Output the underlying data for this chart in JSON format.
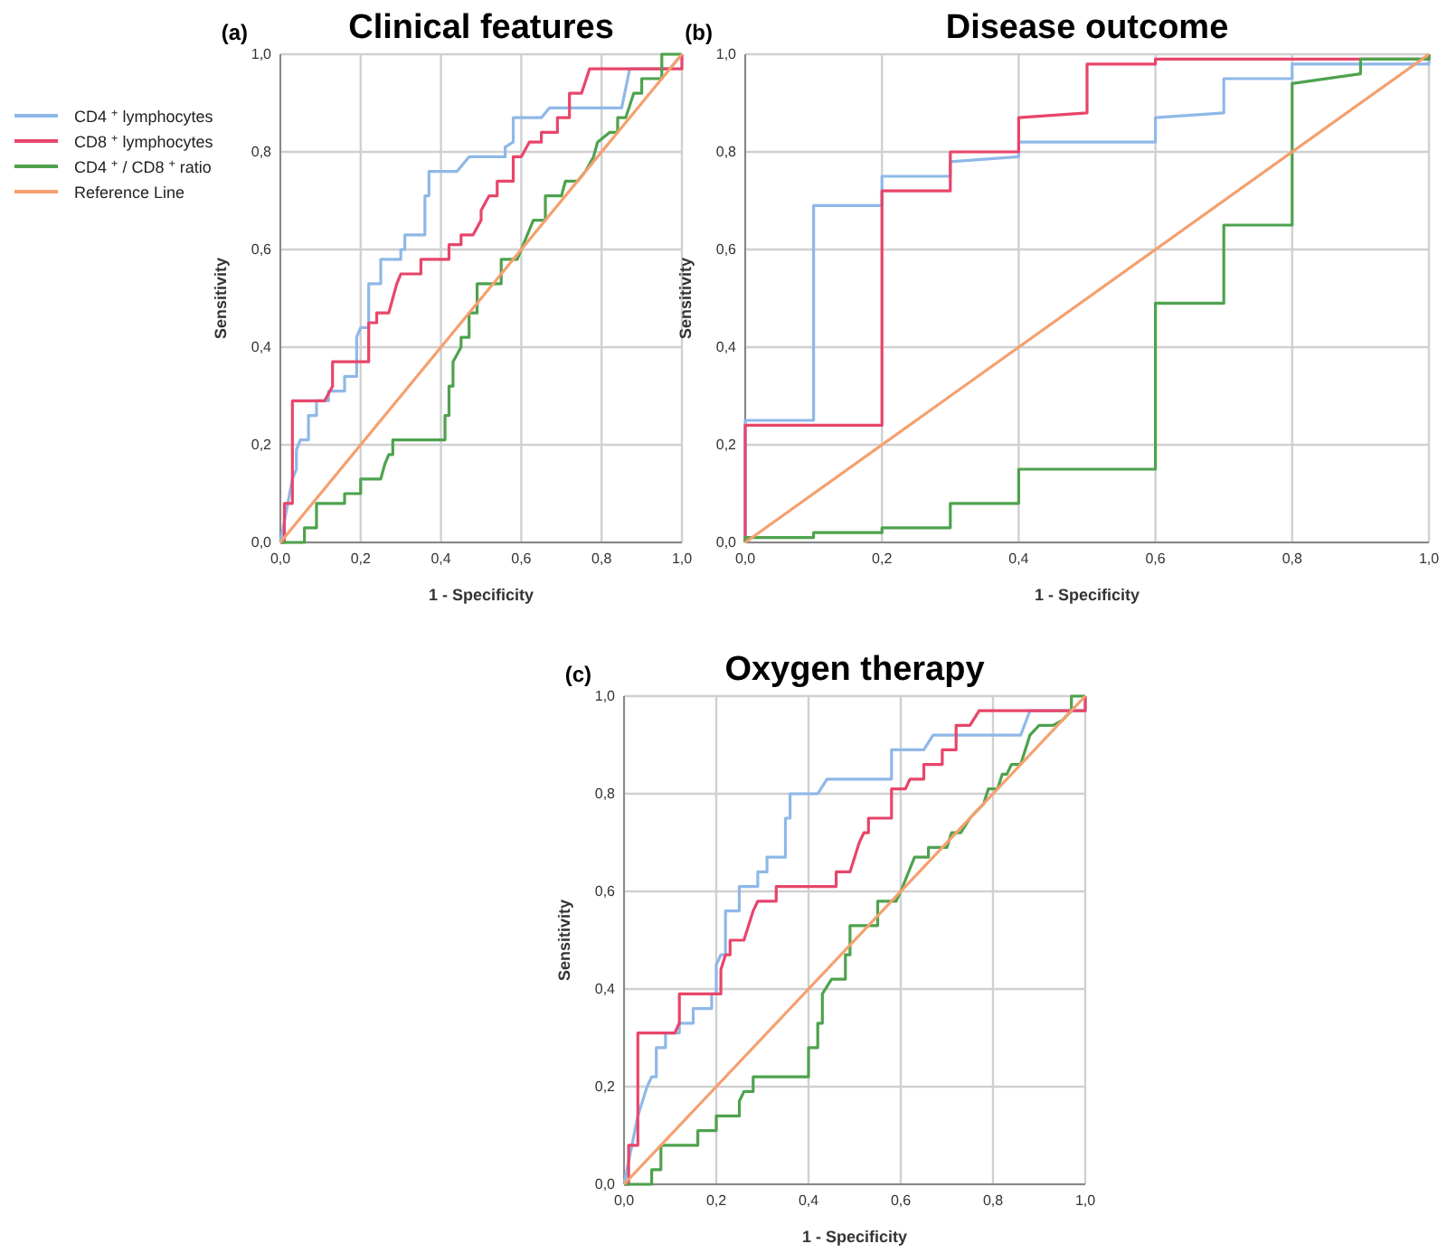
{
  "chart_data": [
    {
      "type": "line",
      "title": "Clinical features",
      "annotations": [
        "(a)"
      ],
      "xlabel": "1 - Specificity",
      "ylabel": "Sensitivity",
      "xlim": [
        0,
        1
      ],
      "ylim": [
        0,
        1
      ],
      "xticks": [
        {
          "value": 0,
          "label": "0,0"
        },
        {
          "value": 0.2,
          "label": "0,2"
        },
        {
          "value": 0.4,
          "label": "0,4"
        },
        {
          "value": 0.6,
          "label": "0,6"
        },
        {
          "value": 0.8,
          "label": "0,8"
        },
        {
          "value": 1,
          "label": "1,0"
        }
      ],
      "yticks": [
        {
          "value": 0,
          "label": "0,0"
        },
        {
          "value": 0.2,
          "label": "0,2"
        },
        {
          "value": 0.4,
          "label": "0,4"
        },
        {
          "value": 0.6,
          "label": "0,6"
        },
        {
          "value": 0.8,
          "label": "0,8"
        },
        {
          "value": 1,
          "label": "1,0"
        }
      ],
      "grid": true,
      "legend": "left",
      "line_style": "solid",
      "series": [
        {
          "name": "CD4 $^{+}$ lymphocytes",
          "color": "#8fb8e8",
          "x": [
            0,
            0.03,
            0.04,
            0.04,
            0.05,
            0.07,
            0.07,
            0.09,
            0.09,
            0.12,
            0.12,
            0.16,
            0.16,
            0.19,
            0.19,
            0.2,
            0.22,
            0.22,
            0.25,
            0.25,
            0.3,
            0.3,
            0.31,
            0.31,
            0.36,
            0.36,
            0.37,
            0.37,
            0.44,
            0.47,
            0.56,
            0.56,
            0.58,
            0.58,
            0.65,
            0.67,
            0.85,
            0.87,
            0.97,
            1
          ],
          "values": [
            0,
            0.13,
            0.15,
            0.19,
            0.21,
            0.21,
            0.26,
            0.26,
            0.29,
            0.29,
            0.31,
            0.31,
            0.34,
            0.34,
            0.42,
            0.44,
            0.44,
            0.53,
            0.53,
            0.58,
            0.58,
            0.6,
            0.6,
            0.63,
            0.63,
            0.71,
            0.71,
            0.76,
            0.76,
            0.79,
            0.79,
            0.81,
            0.82,
            0.87,
            0.87,
            0.89,
            0.89,
            0.97,
            0.97,
            1
          ]
        },
        {
          "name": "CD8 $^{+}$ lymphocytes",
          "color": "#e8456a",
          "x": [
            0,
            0.01,
            0.01,
            0.03,
            0.03,
            0.11,
            0.13,
            0.13,
            0.22,
            0.22,
            0.24,
            0.24,
            0.27,
            0.28,
            0.29,
            0.3,
            0.35,
            0.35,
            0.42,
            0.42,
            0.45,
            0.45,
            0.48,
            0.5,
            0.5,
            0.52,
            0.54,
            0.54,
            0.58,
            0.58,
            0.6,
            0.62,
            0.65,
            0.65,
            0.69,
            0.69,
            0.72,
            0.72,
            0.75,
            0.77,
            1,
            1
          ],
          "values": [
            0,
            0,
            0.08,
            0.08,
            0.29,
            0.29,
            0.32,
            0.37,
            0.37,
            0.45,
            0.45,
            0.47,
            0.47,
            0.5,
            0.53,
            0.55,
            0.55,
            0.58,
            0.58,
            0.61,
            0.61,
            0.63,
            0.63,
            0.66,
            0.68,
            0.71,
            0.71,
            0.74,
            0.74,
            0.79,
            0.79,
            0.82,
            0.82,
            0.84,
            0.84,
            0.87,
            0.87,
            0.92,
            0.92,
            0.97,
            0.97,
            1
          ]
        },
        {
          "name": "CD4 $^{+}$ / CD8 $^{+}$ ratio",
          "color": "#4ea24e",
          "x": [
            0,
            0.06,
            0.06,
            0.09,
            0.09,
            0.16,
            0.16,
            0.2,
            0.2,
            0.25,
            0.26,
            0.27,
            0.28,
            0.28,
            0.41,
            0.41,
            0.42,
            0.42,
            0.43,
            0.43,
            0.45,
            0.45,
            0.47,
            0.47,
            0.49,
            0.49,
            0.55,
            0.55,
            0.59,
            0.6,
            0.63,
            0.66,
            0.66,
            0.7,
            0.71,
            0.74,
            0.76,
            0.78,
            0.79,
            0.82,
            0.84,
            0.84,
            0.86,
            0.88,
            0.9,
            0.9,
            0.95,
            0.95,
            1
          ],
          "values": [
            0,
            0,
            0.03,
            0.03,
            0.08,
            0.08,
            0.1,
            0.1,
            0.13,
            0.13,
            0.16,
            0.18,
            0.18,
            0.21,
            0.21,
            0.26,
            0.26,
            0.32,
            0.32,
            0.37,
            0.4,
            0.42,
            0.42,
            0.47,
            0.47,
            0.53,
            0.53,
            0.58,
            0.58,
            0.6,
            0.66,
            0.66,
            0.71,
            0.71,
            0.74,
            0.74,
            0.76,
            0.79,
            0.82,
            0.84,
            0.84,
            0.87,
            0.87,
            0.92,
            0.92,
            0.95,
            0.95,
            1,
            1
          ]
        },
        {
          "name": "Reference Line",
          "color": "#f5a06e",
          "x": [
            0,
            1
          ],
          "values": [
            0,
            1
          ]
        }
      ]
    },
    {
      "type": "line",
      "title": "Disease outcome",
      "annotations": [
        "(b)"
      ],
      "xlabel": "1 - Specificity",
      "ylabel": "Sensitivity",
      "xlim": [
        0,
        1
      ],
      "ylim": [
        0,
        1
      ],
      "xticks": [
        {
          "value": 0,
          "label": "0,0"
        },
        {
          "value": 0.2,
          "label": "0,2"
        },
        {
          "value": 0.4,
          "label": "0,4"
        },
        {
          "value": 0.6,
          "label": "0,6"
        },
        {
          "value": 0.8,
          "label": "0,8"
        },
        {
          "value": 1,
          "label": "1,0"
        }
      ],
      "yticks": [
        {
          "value": 0,
          "label": "0,0"
        },
        {
          "value": 0.2,
          "label": "0,2"
        },
        {
          "value": 0.4,
          "label": "0,4"
        },
        {
          "value": 0.6,
          "label": "0,6"
        },
        {
          "value": 0.8,
          "label": "0,8"
        },
        {
          "value": 1,
          "label": "1,0"
        }
      ],
      "grid": true,
      "line_style": "solid",
      "series": [
        {
          "color": "#8fb8e8",
          "x": [
            0,
            0,
            0.1,
            0.1,
            0.2,
            0.2,
            0.3,
            0.3,
            0.4,
            0.4,
            0.6,
            0.6,
            0.7,
            0.7,
            0.8,
            0.8,
            1,
            1
          ],
          "values": [
            0,
            0.25,
            0.25,
            0.69,
            0.69,
            0.75,
            0.75,
            0.78,
            0.79,
            0.82,
            0.82,
            0.87,
            0.88,
            0.95,
            0.95,
            0.98,
            0.98,
            1
          ]
        },
        {
          "color": "#e8456a",
          "x": [
            0,
            0,
            0.2,
            0.2,
            0.3,
            0.3,
            0.4,
            0.4,
            0.5,
            0.5,
            0.6,
            0.6,
            1,
            1
          ],
          "values": [
            0,
            0.24,
            0.24,
            0.72,
            0.72,
            0.8,
            0.8,
            0.87,
            0.88,
            0.98,
            0.98,
            0.99,
            0.99,
            1
          ]
        },
        {
          "color": "#4ea24e",
          "x": [
            0,
            0,
            0.1,
            0.1,
            0.2,
            0.2,
            0.3,
            0.3,
            0.4,
            0.4,
            0.6,
            0.6,
            0.7,
            0.7,
            0.8,
            0.8,
            0.9,
            0.9,
            1,
            1
          ],
          "values": [
            0,
            0.01,
            0.01,
            0.02,
            0.02,
            0.03,
            0.03,
            0.08,
            0.08,
            0.15,
            0.15,
            0.49,
            0.49,
            0.65,
            0.65,
            0.94,
            0.96,
            0.99,
            0.99,
            1
          ]
        },
        {
          "color": "#f5a06e",
          "x": [
            0,
            1
          ],
          "values": [
            0,
            1
          ]
        }
      ]
    },
    {
      "type": "line",
      "title": "Oxygen therapy",
      "annotations": [
        "(c)"
      ],
      "xlabel": "1 - Specificity",
      "ylabel": "Sensitivity",
      "xlim": [
        0,
        1
      ],
      "ylim": [
        0,
        1
      ],
      "xticks": [
        {
          "value": 0,
          "label": "0,0"
        },
        {
          "value": 0.2,
          "label": "0,2"
        },
        {
          "value": 0.4,
          "label": "0,4"
        },
        {
          "value": 0.6,
          "label": "0,6"
        },
        {
          "value": 0.8,
          "label": "0,8"
        },
        {
          "value": 1,
          "label": "1,0"
        }
      ],
      "yticks": [
        {
          "value": 0,
          "label": "0,0"
        },
        {
          "value": 0.2,
          "label": "0,2"
        },
        {
          "value": 0.4,
          "label": "0,4"
        },
        {
          "value": 0.6,
          "label": "0,6"
        },
        {
          "value": 0.8,
          "label": "0,8"
        },
        {
          "value": 1,
          "label": "1,0"
        }
      ],
      "grid": true,
      "line_style": "solid",
      "series": [
        {
          "color": "#8fb8e8",
          "x": [
            0,
            0.03,
            0.04,
            0.05,
            0.06,
            0.07,
            0.07,
            0.09,
            0.09,
            0.12,
            0.12,
            0.15,
            0.15,
            0.19,
            0.19,
            0.2,
            0.2,
            0.21,
            0.22,
            0.22,
            0.25,
            0.25,
            0.29,
            0.29,
            0.31,
            0.31,
            0.35,
            0.35,
            0.36,
            0.36,
            0.42,
            0.44,
            0.58,
            0.58,
            0.65,
            0.67,
            0.86,
            0.88,
            1,
            1
          ],
          "values": [
            0,
            0.14,
            0.17,
            0.2,
            0.22,
            0.22,
            0.28,
            0.28,
            0.31,
            0.31,
            0.33,
            0.33,
            0.36,
            0.36,
            0.39,
            0.39,
            0.45,
            0.47,
            0.47,
            0.56,
            0.56,
            0.61,
            0.61,
            0.64,
            0.64,
            0.67,
            0.67,
            0.75,
            0.75,
            0.8,
            0.8,
            0.83,
            0.83,
            0.89,
            0.89,
            0.92,
            0.92,
            0.97,
            0.97,
            1
          ]
        },
        {
          "color": "#e8456a",
          "x": [
            0,
            0.01,
            0.01,
            0.03,
            0.03,
            0.11,
            0.12,
            0.12,
            0.21,
            0.21,
            0.22,
            0.23,
            0.23,
            0.26,
            0.27,
            0.28,
            0.29,
            0.33,
            0.33,
            0.46,
            0.46,
            0.49,
            0.5,
            0.51,
            0.52,
            0.53,
            0.53,
            0.58,
            0.58,
            0.61,
            0.62,
            0.65,
            0.65,
            0.69,
            0.69,
            0.72,
            0.72,
            0.75,
            0.77,
            1,
            1
          ],
          "values": [
            0,
            0,
            0.08,
            0.08,
            0.31,
            0.31,
            0.33,
            0.39,
            0.39,
            0.44,
            0.47,
            0.47,
            0.5,
            0.5,
            0.53,
            0.56,
            0.58,
            0.58,
            0.61,
            0.61,
            0.64,
            0.64,
            0.67,
            0.7,
            0.72,
            0.72,
            0.75,
            0.75,
            0.81,
            0.81,
            0.83,
            0.83,
            0.86,
            0.86,
            0.89,
            0.89,
            0.94,
            0.94,
            0.97,
            0.97,
            1
          ]
        },
        {
          "color": "#4ea24e",
          "x": [
            0,
            0.06,
            0.06,
            0.08,
            0.08,
            0.16,
            0.16,
            0.2,
            0.2,
            0.25,
            0.25,
            0.26,
            0.28,
            0.28,
            0.4,
            0.4,
            0.42,
            0.42,
            0.43,
            0.43,
            0.45,
            0.48,
            0.48,
            0.49,
            0.49,
            0.55,
            0.55,
            0.59,
            0.6,
            0.63,
            0.66,
            0.66,
            0.7,
            0.71,
            0.73,
            0.75,
            0.78,
            0.79,
            0.81,
            0.82,
            0.83,
            0.84,
            0.86,
            0.88,
            0.9,
            0.93,
            0.95,
            0.97,
            0.97,
            1
          ],
          "values": [
            0,
            0,
            0.03,
            0.03,
            0.08,
            0.08,
            0.11,
            0.11,
            0.14,
            0.14,
            0.17,
            0.19,
            0.19,
            0.22,
            0.22,
            0.28,
            0.28,
            0.33,
            0.33,
            0.39,
            0.42,
            0.42,
            0.47,
            0.47,
            0.53,
            0.53,
            0.58,
            0.58,
            0.6,
            0.67,
            0.67,
            0.69,
            0.69,
            0.72,
            0.72,
            0.75,
            0.78,
            0.81,
            0.81,
            0.84,
            0.84,
            0.86,
            0.86,
            0.92,
            0.94,
            0.94,
            0.95,
            0.97,
            1,
            1
          ]
        },
        {
          "color": "#f5a06e",
          "x": [
            0,
            1
          ],
          "values": [
            0,
            1
          ]
        }
      ]
    }
  ]
}
